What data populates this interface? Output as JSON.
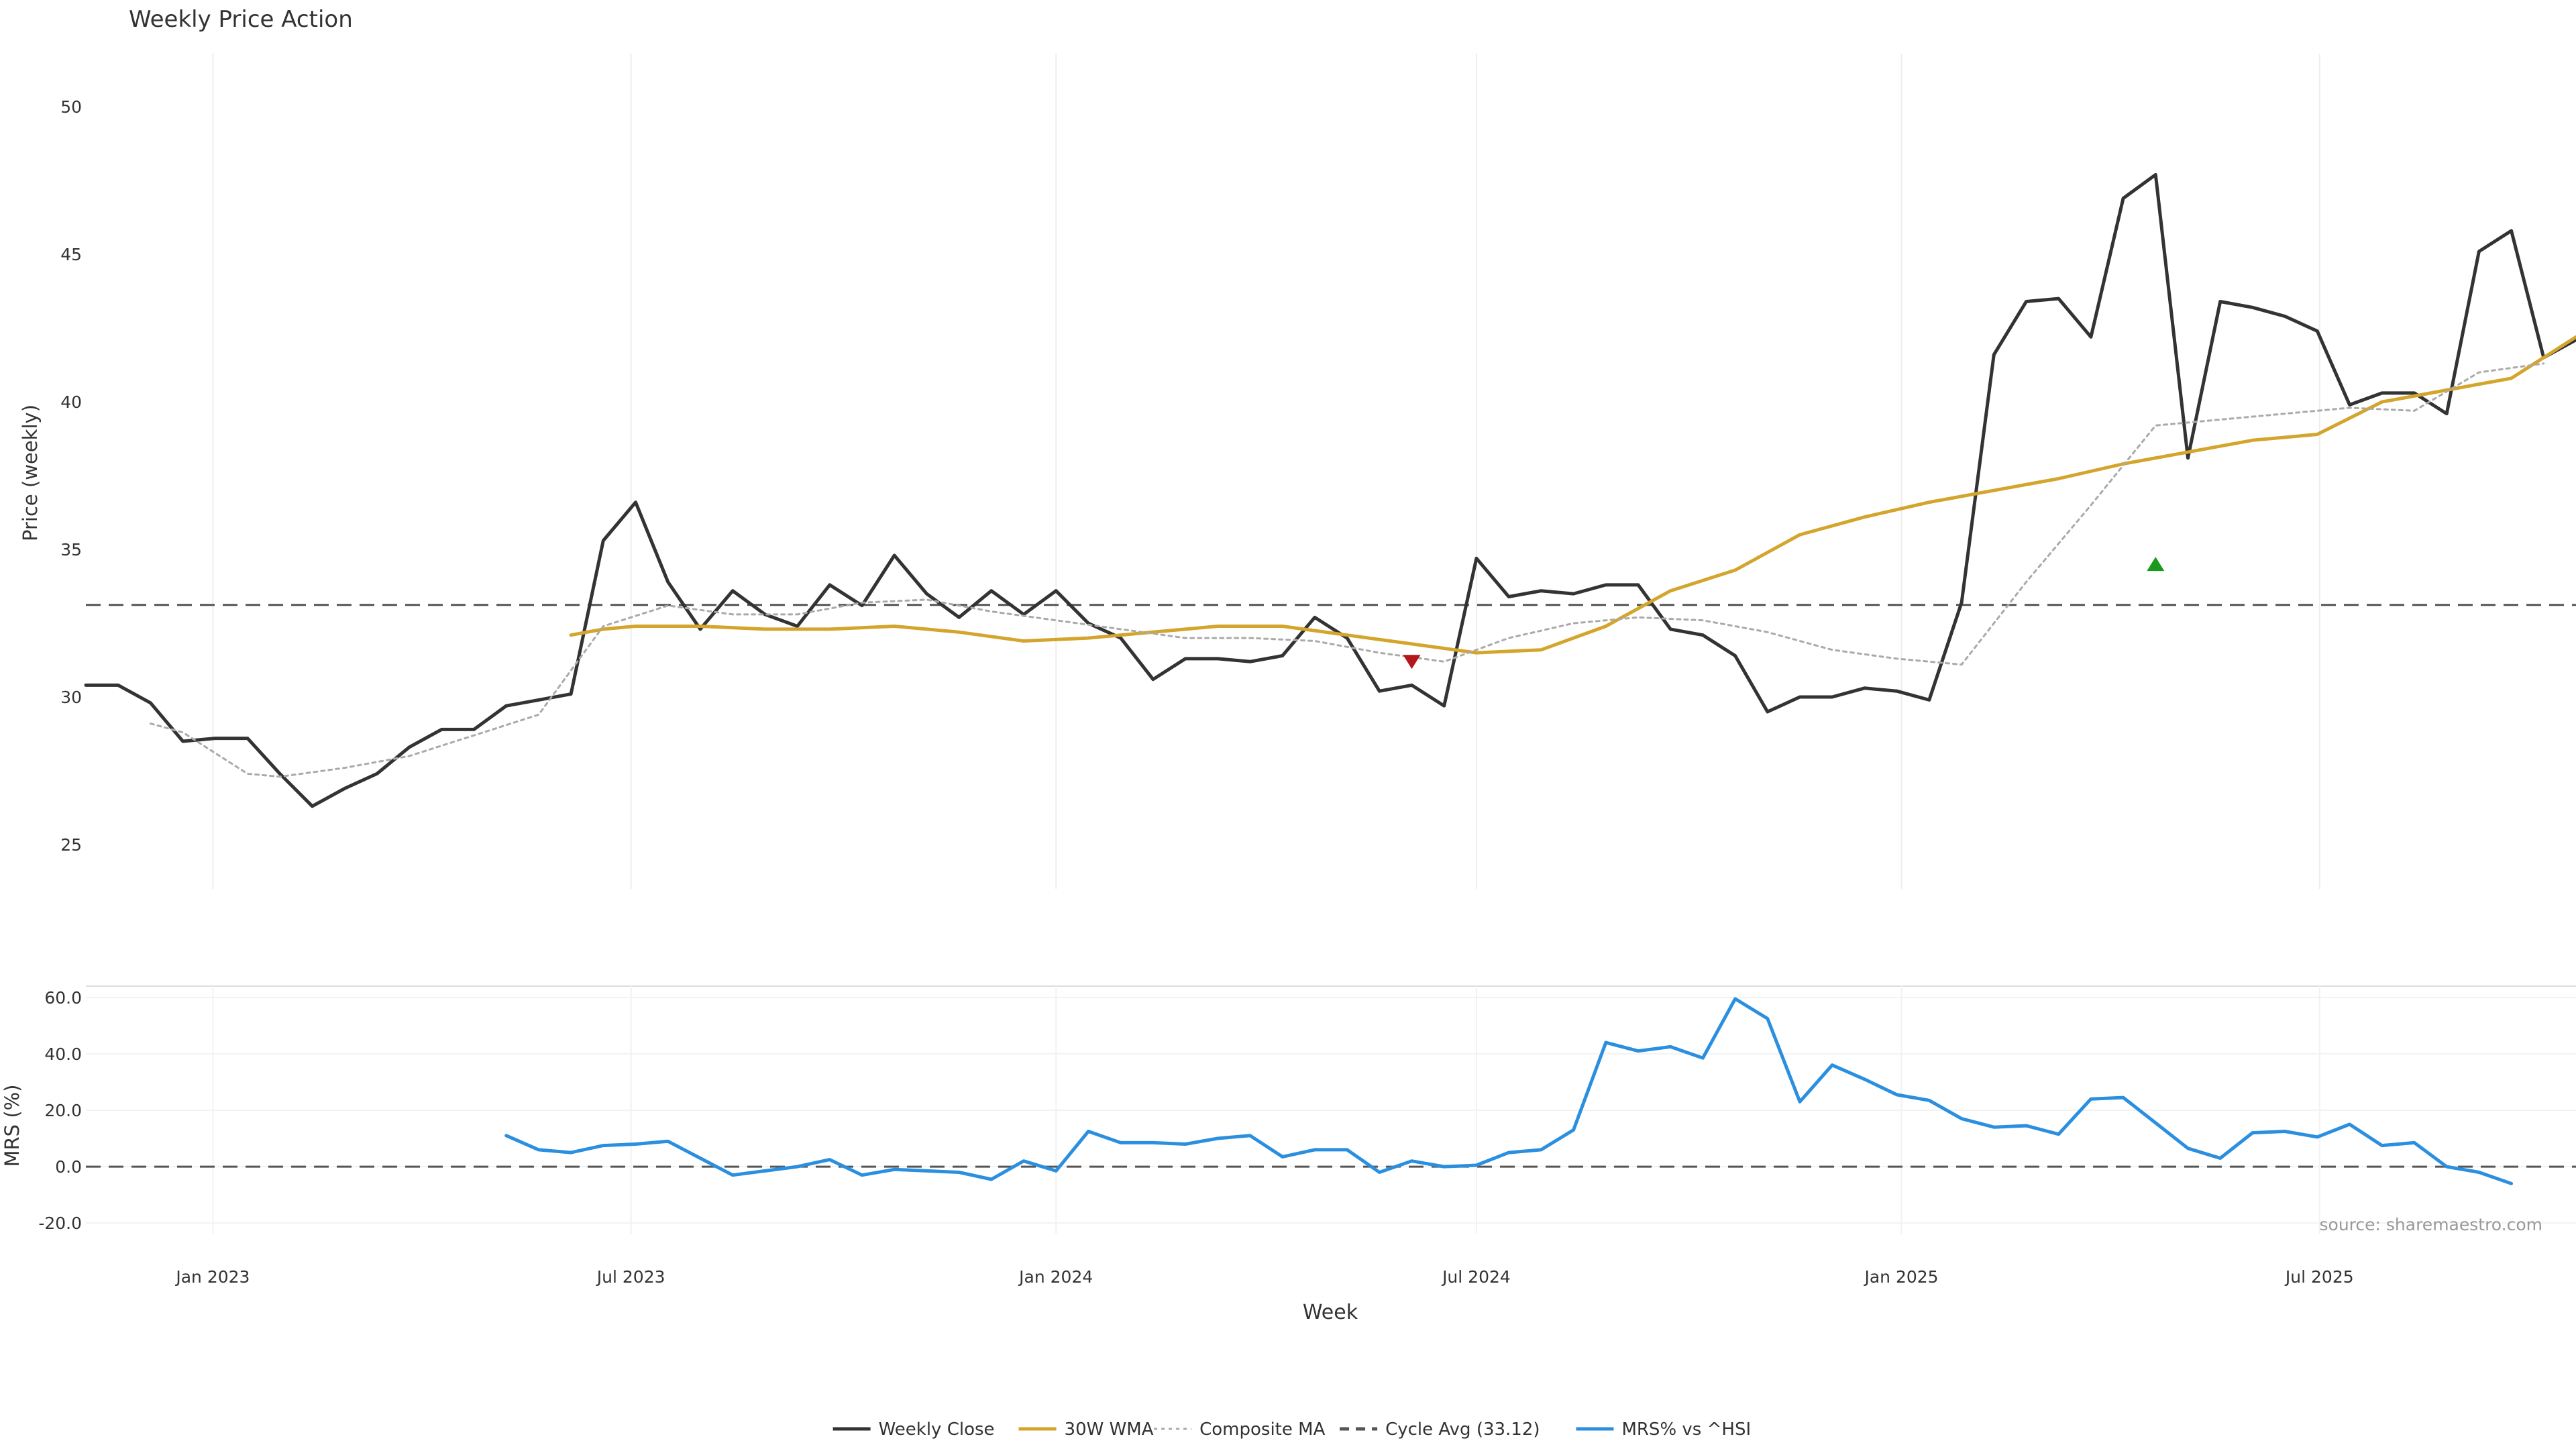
{
  "chart_data": [
    {
      "type": "line",
      "title": "Weekly Price Action",
      "ylabel": "Price (weekly)",
      "ylim": [
        23.5,
        51.8
      ],
      "yticks": [
        25,
        30,
        35,
        40,
        45,
        50
      ],
      "xlim": [
        "2022-11-07",
        "2025-10-20"
      ],
      "grid": "vertical",
      "series": [
        {
          "name": "Weekly Close",
          "color": "#333333",
          "style": "solid",
          "points": [
            [
              "2022-11-07",
              30.4
            ],
            [
              "2022-11-21",
              30.4
            ],
            [
              "2022-12-05",
              29.8
            ],
            [
              "2022-12-19",
              28.5
            ],
            [
              "2023-01-02",
              28.6
            ],
            [
              "2023-01-16",
              28.6
            ],
            [
              "2023-01-30",
              27.4
            ],
            [
              "2023-02-13",
              26.3
            ],
            [
              "2023-02-27",
              26.9
            ],
            [
              "2023-03-13",
              27.4
            ],
            [
              "2023-03-27",
              28.3
            ],
            [
              "2023-04-10",
              28.9
            ],
            [
              "2023-04-24",
              28.9
            ],
            [
              "2023-05-08",
              29.7
            ],
            [
              "2023-05-22",
              29.9
            ],
            [
              "2023-06-05",
              30.1
            ],
            [
              "2023-06-19",
              35.3
            ],
            [
              "2023-07-03",
              36.6
            ],
            [
              "2023-07-17",
              33.9
            ],
            [
              "2023-07-31",
              32.3
            ],
            [
              "2023-08-14",
              33.6
            ],
            [
              "2023-08-28",
              32.8
            ],
            [
              "2023-09-11",
              32.4
            ],
            [
              "2023-09-25",
              33.8
            ],
            [
              "2023-10-09",
              33.1
            ],
            [
              "2023-10-23",
              34.8
            ],
            [
              "2023-11-06",
              33.5
            ],
            [
              "2023-11-20",
              32.7
            ],
            [
              "2023-12-04",
              33.6
            ],
            [
              "2023-12-18",
              32.8
            ],
            [
              "2024-01-01",
              33.6
            ],
            [
              "2024-01-15",
              32.5
            ],
            [
              "2024-01-29",
              32.0
            ],
            [
              "2024-02-12",
              30.6
            ],
            [
              "2024-02-26",
              31.3
            ],
            [
              "2024-03-11",
              31.3
            ],
            [
              "2024-03-25",
              31.2
            ],
            [
              "2024-04-08",
              31.4
            ],
            [
              "2024-04-22",
              32.7
            ],
            [
              "2024-05-06",
              32.0
            ],
            [
              "2024-05-20",
              30.2
            ],
            [
              "2024-06-03",
              30.4
            ],
            [
              "2024-06-17",
              29.7
            ],
            [
              "2024-07-01",
              34.7
            ],
            [
              "2024-07-15",
              33.4
            ],
            [
              "2024-07-29",
              33.6
            ],
            [
              "2024-08-12",
              33.5
            ],
            [
              "2024-08-26",
              33.8
            ],
            [
              "2024-09-09",
              33.8
            ],
            [
              "2024-09-23",
              32.3
            ],
            [
              "2024-10-07",
              32.1
            ],
            [
              "2024-10-21",
              31.4
            ],
            [
              "2024-11-04",
              29.5
            ],
            [
              "2024-11-18",
              30.0
            ],
            [
              "2024-12-02",
              30.0
            ],
            [
              "2024-12-16",
              30.3
            ],
            [
              "2024-12-30",
              30.2
            ],
            [
              "2025-01-13",
              29.9
            ],
            [
              "2025-01-27",
              33.2
            ],
            [
              "2025-02-10",
              41.6
            ],
            [
              "2025-02-24",
              43.4
            ],
            [
              "2025-03-10",
              43.5
            ],
            [
              "2025-03-24",
              42.2
            ],
            [
              "2025-04-07",
              46.9
            ],
            [
              "2025-04-21",
              47.7
            ],
            [
              "2025-05-05",
              38.1
            ],
            [
              "2025-05-19",
              43.4
            ],
            [
              "2025-06-02",
              43.2
            ],
            [
              "2025-06-16",
              42.9
            ],
            [
              "2025-06-30",
              42.4
            ],
            [
              "2025-07-14",
              39.9
            ],
            [
              "2025-07-28",
              40.3
            ],
            [
              "2025-08-11",
              40.3
            ],
            [
              "2025-08-25",
              39.6
            ],
            [
              "2025-09-08",
              45.1
            ],
            [
              "2025-09-22",
              45.8
            ],
            [
              "2025-10-06",
              41.5
            ],
            [
              "2025-10-20",
              42.1
            ]
          ]
        },
        {
          "name": "30W WMA",
          "color": "#d4a52c",
          "style": "solid",
          "points": [
            [
              "2023-06-05",
              32.1
            ],
            [
              "2023-06-19",
              32.3
            ],
            [
              "2023-07-03",
              32.4
            ],
            [
              "2023-07-31",
              32.4
            ],
            [
              "2023-08-28",
              32.3
            ],
            [
              "2023-09-25",
              32.3
            ],
            [
              "2023-10-23",
              32.4
            ],
            [
              "2023-11-20",
              32.2
            ],
            [
              "2023-12-18",
              31.9
            ],
            [
              "2024-01-15",
              32.0
            ],
            [
              "2024-02-12",
              32.2
            ],
            [
              "2024-03-11",
              32.4
            ],
            [
              "2024-04-08",
              32.4
            ],
            [
              "2024-05-06",
              32.1
            ],
            [
              "2024-06-03",
              31.8
            ],
            [
              "2024-07-01",
              31.5
            ],
            [
              "2024-07-29",
              31.6
            ],
            [
              "2024-08-26",
              32.4
            ],
            [
              "2024-09-23",
              33.6
            ],
            [
              "2024-10-21",
              34.3
            ],
            [
              "2024-11-18",
              35.5
            ],
            [
              "2024-12-16",
              36.1
            ],
            [
              "2025-01-13",
              36.6
            ],
            [
              "2025-02-10",
              37.0
            ],
            [
              "2025-03-10",
              37.4
            ],
            [
              "2025-04-07",
              37.9
            ],
            [
              "2025-05-05",
              38.3
            ],
            [
              "2025-06-02",
              38.7
            ],
            [
              "2025-06-30",
              38.9
            ],
            [
              "2025-07-28",
              40.0
            ],
            [
              "2025-08-25",
              40.4
            ],
            [
              "2025-09-22",
              40.8
            ],
            [
              "2025-10-20",
              42.2
            ]
          ]
        },
        {
          "name": "Composite MA",
          "color": "#aaaaaa",
          "style": "dotted",
          "points": [
            [
              "2022-12-05",
              29.1
            ],
            [
              "2022-12-19",
              28.8
            ],
            [
              "2023-01-02",
              28.1
            ],
            [
              "2023-01-16",
              27.4
            ],
            [
              "2023-01-30",
              27.3
            ],
            [
              "2023-02-27",
              27.6
            ],
            [
              "2023-03-27",
              28.0
            ],
            [
              "2023-04-24",
              28.7
            ],
            [
              "2023-05-22",
              29.4
            ],
            [
              "2023-06-19",
              32.4
            ],
            [
              "2023-07-17",
              33.1
            ],
            [
              "2023-08-14",
              32.8
            ],
            [
              "2023-09-11",
              32.8
            ],
            [
              "2023-10-09",
              33.2
            ],
            [
              "2023-11-06",
              33.3
            ],
            [
              "2023-12-04",
              32.9
            ],
            [
              "2024-01-01",
              32.6
            ],
            [
              "2024-01-29",
              32.3
            ],
            [
              "2024-02-26",
              32.0
            ],
            [
              "2024-03-25",
              32.0
            ],
            [
              "2024-04-22",
              31.9
            ],
            [
              "2024-05-20",
              31.5
            ],
            [
              "2024-06-17",
              31.2
            ],
            [
              "2024-07-15",
              32.0
            ],
            [
              "2024-08-12",
              32.5
            ],
            [
              "2024-09-09",
              32.7
            ],
            [
              "2024-10-07",
              32.6
            ],
            [
              "2024-11-04",
              32.2
            ],
            [
              "2024-12-02",
              31.6
            ],
            [
              "2024-12-30",
              31.3
            ],
            [
              "2025-01-27",
              31.1
            ],
            [
              "2025-02-24",
              33.9
            ],
            [
              "2025-03-24",
              36.5
            ],
            [
              "2025-04-21",
              39.2
            ],
            [
              "2025-05-19",
              39.4
            ],
            [
              "2025-06-16",
              39.6
            ],
            [
              "2025-07-14",
              39.8
            ],
            [
              "2025-08-11",
              39.7
            ],
            [
              "2025-09-08",
              41.0
            ],
            [
              "2025-10-06",
              41.3
            ]
          ]
        }
      ],
      "hline": {
        "name": "Cycle Avg (33.12)",
        "value": 33.12,
        "color": "#555555",
        "style": "dashed"
      },
      "markers": [
        {
          "type": "sell",
          "date": "2024-06-03",
          "value": 31.2,
          "color": "#b3171b"
        },
        {
          "type": "buy",
          "date": "2025-04-21",
          "value": 34.5,
          "color": "#1a9a1a"
        }
      ]
    },
    {
      "type": "line",
      "ylabel": "MRS (%)",
      "ylim": [
        -24,
        64
      ],
      "yticks": [
        -20,
        0,
        20,
        40,
        60
      ],
      "ytick_labels": [
        "-20.0",
        "0.0",
        "20.0",
        "40.0",
        "60.0"
      ],
      "xlabel": "Week",
      "xticks": [
        "2023-01-01",
        "2023-07-01",
        "2024-01-01",
        "2024-07-01",
        "2025-01-01",
        "2025-07-01"
      ],
      "xtick_labels": [
        "Jan 2023",
        "Jul 2023",
        "Jan 2024",
        "Jul 2024",
        "Jan 2025",
        "Jul 2025"
      ],
      "series": [
        {
          "name": "MRS% vs ^HSI",
          "color": "#2b8fe0",
          "style": "solid",
          "points": [
            [
              "2023-05-08",
              11
            ],
            [
              "2023-05-22",
              6
            ],
            [
              "2023-06-05",
              5
            ],
            [
              "2023-06-19",
              7.5
            ],
            [
              "2023-07-03",
              8
            ],
            [
              "2023-07-17",
              9
            ],
            [
              "2023-07-31",
              3
            ],
            [
              "2023-08-14",
              -3
            ],
            [
              "2023-08-28",
              -1.5
            ],
            [
              "2023-09-11",
              0
            ],
            [
              "2023-09-25",
              2.5
            ],
            [
              "2023-10-09",
              -3
            ],
            [
              "2023-10-23",
              -1
            ],
            [
              "2023-11-06",
              -1.5
            ],
            [
              "2023-11-20",
              -2
            ],
            [
              "2023-12-04",
              -4.5
            ],
            [
              "2023-12-18",
              2
            ],
            [
              "2024-01-01",
              -1.5
            ],
            [
              "2024-01-15",
              12.5
            ],
            [
              "2024-01-29",
              8.5
            ],
            [
              "2024-02-12",
              8.5
            ],
            [
              "2024-02-26",
              8
            ],
            [
              "2024-03-11",
              10
            ],
            [
              "2024-03-25",
              11
            ],
            [
              "2024-04-08",
              3.5
            ],
            [
              "2024-04-22",
              6
            ],
            [
              "2024-05-06",
              6
            ],
            [
              "2024-05-20",
              -2
            ],
            [
              "2024-06-03",
              2
            ],
            [
              "2024-06-17",
              0
            ],
            [
              "2024-07-01",
              0.5
            ],
            [
              "2024-07-15",
              5
            ],
            [
              "2024-07-29",
              6
            ],
            [
              "2024-08-12",
              13
            ],
            [
              "2024-08-26",
              44
            ],
            [
              "2024-09-09",
              41
            ],
            [
              "2024-09-23",
              42.5
            ],
            [
              "2024-10-07",
              38.5
            ],
            [
              "2024-10-21",
              59.5
            ],
            [
              "2024-11-04",
              52.5
            ],
            [
              "2024-11-18",
              23
            ],
            [
              "2024-12-02",
              36
            ],
            [
              "2024-12-16",
              31
            ],
            [
              "2024-12-30",
              25.5
            ],
            [
              "2025-01-13",
              23.5
            ],
            [
              "2025-01-27",
              17
            ],
            [
              "2025-02-10",
              14
            ],
            [
              "2025-02-24",
              14.5
            ],
            [
              "2025-03-10",
              11.5
            ],
            [
              "2025-03-24",
              24
            ],
            [
              "2025-04-07",
              24.5
            ],
            [
              "2025-04-21",
              15.5
            ],
            [
              "2025-05-05",
              6.5
            ],
            [
              "2025-05-19",
              3
            ],
            [
              "2025-06-02",
              12
            ],
            [
              "2025-06-16",
              12.5
            ],
            [
              "2025-06-30",
              10.5
            ],
            [
              "2025-07-14",
              15
            ],
            [
              "2025-07-28",
              7.5
            ],
            [
              "2025-08-11",
              8.5
            ],
            [
              "2025-08-25",
              0
            ],
            [
              "2025-09-08",
              -2
            ],
            [
              "2025-09-22",
              -6
            ]
          ]
        }
      ],
      "hline": {
        "value": 0,
        "color": "#555555",
        "style": "dashed"
      },
      "annotation": "source: sharemaestro.com"
    }
  ],
  "legend": {
    "placement": "bottom-center",
    "entries": [
      {
        "label": "Weekly Close",
        "color": "#333333",
        "style": "solid"
      },
      {
        "label": "30W WMA",
        "color": "#d4a52c",
        "style": "solid"
      },
      {
        "label": "Composite MA",
        "color": "#aaaaaa",
        "style": "dotted"
      },
      {
        "label": "Cycle Avg (33.12)",
        "color": "#555555",
        "style": "dashed"
      },
      {
        "label": "MRS% vs ^HSI",
        "color": "#2b8fe0",
        "style": "solid"
      }
    ]
  }
}
